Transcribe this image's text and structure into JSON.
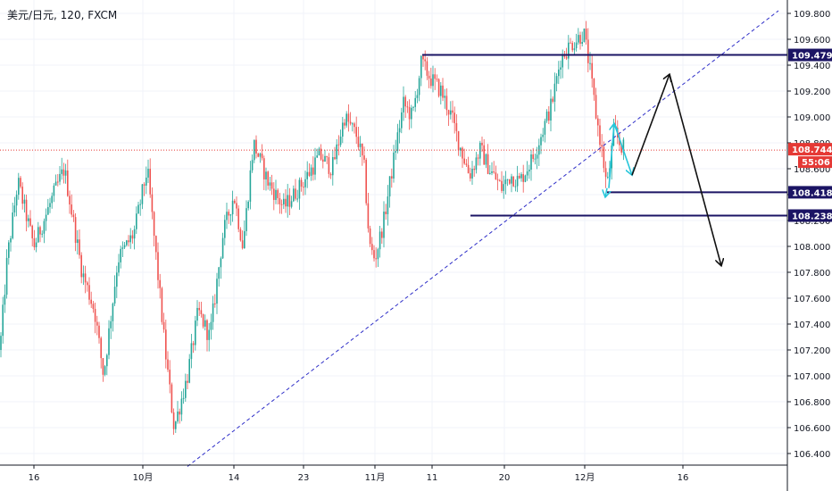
{
  "header": {
    "title": "美元/日元, 120, FXCM"
  },
  "colors": {
    "up": "#26a69a",
    "down": "#ef5350",
    "level": "#1b1464",
    "trend": "#2e2ec8",
    "price_line": "#e53935",
    "arrow": "#111111",
    "cyan": "#26c6da"
  },
  "chart_data": {
    "type": "candlestick",
    "title": "美元/日元, 120, FXCM",
    "ylim": [
      106.3,
      109.8
    ],
    "y_ticks": [
      "109.800",
      "109.600",
      "109.400",
      "109.200",
      "109.000",
      "108.800",
      "108.600",
      "108.400",
      "108.200",
      "108.000",
      "107.800",
      "107.600",
      "107.400",
      "107.200",
      "107.000",
      "106.800",
      "106.600",
      "106.400"
    ],
    "x_ticks": [
      "16",
      "10月",
      "14",
      "23",
      "11月",
      "11",
      "20",
      "12月",
      "16"
    ],
    "series_path": [
      [
        0,
        107.2
      ],
      [
        8,
        107.9
      ],
      [
        20,
        108.5
      ],
      [
        38,
        108.0
      ],
      [
        60,
        108.4
      ],
      [
        72,
        108.6
      ],
      [
        92,
        107.8
      ],
      [
        106,
        107.5
      ],
      [
        116,
        107.0
      ],
      [
        132,
        107.9
      ],
      [
        150,
        108.1
      ],
      [
        165,
        108.6
      ],
      [
        178,
        107.7
      ],
      [
        185,
        107.2
      ],
      [
        195,
        106.6
      ],
      [
        210,
        107.0
      ],
      [
        222,
        107.5
      ],
      [
        235,
        107.3
      ],
      [
        250,
        108.1
      ],
      [
        262,
        108.4
      ],
      [
        272,
        108.0
      ],
      [
        284,
        108.8
      ],
      [
        300,
        108.5
      ],
      [
        318,
        108.3
      ],
      [
        340,
        108.5
      ],
      [
        358,
        108.7
      ],
      [
        372,
        108.6
      ],
      [
        386,
        109.0
      ],
      [
        400,
        108.85
      ],
      [
        408,
        108.6
      ],
      [
        414,
        108.0
      ],
      [
        420,
        107.9
      ],
      [
        430,
        108.2
      ],
      [
        444,
        108.8
      ],
      [
        452,
        109.1
      ],
      [
        462,
        109.0
      ],
      [
        472,
        109.42
      ],
      [
        482,
        109.3
      ],
      [
        494,
        109.2
      ],
      [
        506,
        109.0
      ],
      [
        514,
        108.8
      ],
      [
        526,
        108.55
      ],
      [
        538,
        108.75
      ],
      [
        548,
        108.6
      ],
      [
        562,
        108.45
      ],
      [
        572,
        108.55
      ],
      [
        582,
        108.5
      ],
      [
        598,
        108.7
      ],
      [
        608,
        108.9
      ],
      [
        618,
        109.1
      ],
      [
        628,
        109.45
      ],
      [
        638,
        109.55
      ],
      [
        646,
        109.6
      ],
      [
        654,
        109.65
      ],
      [
        660,
        109.4
      ],
      [
        668,
        109.0
      ],
      [
        674,
        108.75
      ],
      [
        680,
        108.45
      ],
      [
        688,
        108.9
      ],
      [
        694,
        108.8
      ],
      [
        700,
        108.744
      ]
    ],
    "current_price": "108.744",
    "countdown": "55:06",
    "levels": [
      {
        "label": "109.479",
        "value": 109.479,
        "x_start": 473
      },
      {
        "label": "108.418",
        "value": 108.418,
        "x_start": 680
      },
      {
        "label": "108.238",
        "value": 108.238,
        "x_start": 527
      }
    ],
    "trendline": {
      "p1": [
        210,
        106.3
      ],
      "p2": [
        872,
        109.8
      ]
    },
    "projection_path": [
      [
        708,
        108.55
      ],
      [
        750,
        109.33
      ],
      [
        808,
        107.85
      ]
    ],
    "zigzag_path": [
      [
        682,
        108.45
      ],
      [
        688,
        108.95
      ],
      [
        708,
        108.55
      ]
    ]
  }
}
